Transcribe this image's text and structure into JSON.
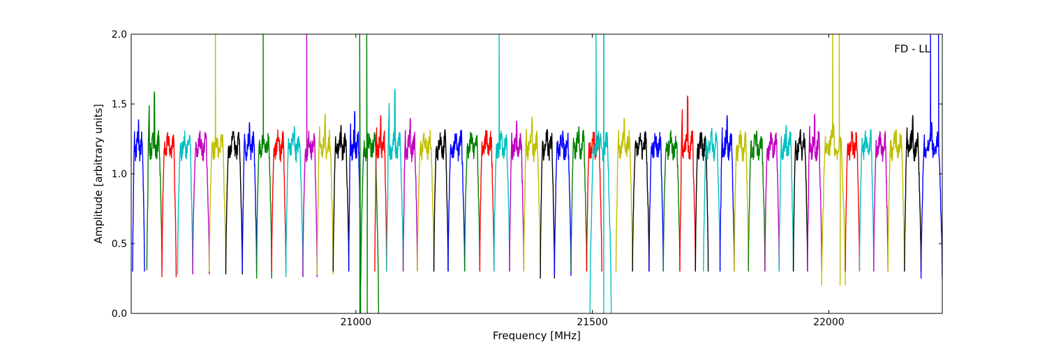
{
  "chart_data": {
    "type": "line",
    "title": "",
    "annotation": "FD - LL",
    "xlabel": "Frequency [MHz]",
    "ylabel": "Amplitude [arbitrary units]",
    "xlim": [
      20525,
      22240
    ],
    "ylim": [
      0.0,
      2.0
    ],
    "xticks": [
      21000,
      21500,
      22000
    ],
    "yticks": [
      0.0,
      0.5,
      1.0,
      1.5,
      2.0
    ],
    "xtick_labels": [
      "21000",
      "21500",
      "22000"
    ],
    "ytick_labels": [
      "0.0",
      "0.5",
      "1.0",
      "1.5",
      "2.0"
    ],
    "grid": false,
    "legend": "none",
    "band_shape": "each spectral window rises from ~0.3 at its edges to ~1.2-1.4 across a rippled passband",
    "colors": [
      "#0000ff",
      "#008000",
      "#ff0000",
      "#00bfbf",
      "#bf00bf",
      "#bfbf00",
      "#000000"
    ],
    "series": [
      {
        "color": "#0000ff",
        "band": [
          20528,
          20553
        ],
        "peak": 1.39,
        "floor": 0.3
      },
      {
        "color": "#008000",
        "band": [
          20558,
          20590
        ],
        "peak": 1.59,
        "floor": 0.31
      },
      {
        "color": "#ff0000",
        "band": [
          20590,
          20620
        ],
        "peak": 1.26,
        "floor": 0.26
      },
      {
        "color": "#00bfbf",
        "band": [
          20623,
          20655
        ],
        "peak": 1.23,
        "floor": 0.28
      },
      {
        "color": "#bf00bf",
        "band": [
          20655,
          20690
        ],
        "peak": 1.23,
        "floor": 0.28
      },
      {
        "color": "#bfbf00",
        "band": [
          20690,
          20725
        ],
        "peak": 1.26,
        "floor": 0.3,
        "spikes": [
          {
            "x": 20703,
            "y": 2.0
          }
        ]
      },
      {
        "color": "#000000",
        "band": [
          20725,
          20760
        ],
        "peak": 1.27,
        "floor": 0.28
      },
      {
        "color": "#0000ff",
        "band": [
          20760,
          20790
        ],
        "peak": 1.37,
        "floor": 0.3
      },
      {
        "color": "#008000",
        "band": [
          20790,
          20822
        ],
        "peak": 1.25,
        "floor": 0.25,
        "spikes": [
          {
            "x": 20804,
            "y": 2.0
          }
        ]
      },
      {
        "color": "#ff0000",
        "band": [
          20822,
          20852
        ],
        "peak": 1.26,
        "floor": 0.3
      },
      {
        "color": "#00bfbf",
        "band": [
          20852,
          20888
        ],
        "peak": 1.34,
        "floor": 0.26
      },
      {
        "color": "#bf00bf",
        "band": [
          20888,
          20918
        ],
        "peak": 1.21,
        "floor": 0.26,
        "spikes": [
          {
            "x": 20896,
            "y": 2.0
          }
        ]
      },
      {
        "color": "#bfbf00",
        "band": [
          20918,
          20952
        ],
        "peak": 1.43,
        "floor": 0.28
      },
      {
        "color": "#000000",
        "band": [
          20952,
          20985
        ],
        "peak": 1.35,
        "floor": 0.3
      },
      {
        "color": "#0000ff",
        "band": [
          20985,
          21010
        ],
        "peak": 1.45,
        "floor": 0.3
      },
      {
        "color": "#008000",
        "band": [
          21010,
          21048
        ],
        "peak": 1.23,
        "floor": 0.0,
        "spikes": [
          {
            "x": 21008,
            "y": 2.0
          },
          {
            "x": 21023,
            "y": 2.0
          },
          {
            "x": 21024,
            "y": 0.0
          }
        ]
      },
      {
        "color": "#ff0000",
        "band": [
          21040,
          21065
        ],
        "peak": 1.42,
        "floor": 0.3
      },
      {
        "color": "#00bfbf",
        "band": [
          21065,
          21100
        ],
        "peak": 1.61,
        "floor": 0.3
      },
      {
        "color": "#bf00bf",
        "band": [
          21100,
          21130
        ],
        "peak": 1.4,
        "floor": 0.3
      },
      {
        "color": "#bfbf00",
        "band": [
          21130,
          21165
        ],
        "peak": 1.22,
        "floor": 0.3
      },
      {
        "color": "#000000",
        "band": [
          21165,
          21195
        ],
        "peak": 1.26,
        "floor": 0.3
      },
      {
        "color": "#0000ff",
        "band": [
          21195,
          21230
        ],
        "peak": 1.29,
        "floor": 0.3
      },
      {
        "color": "#008000",
        "band": [
          21230,
          21262
        ],
        "peak": 1.23,
        "floor": 0.3
      },
      {
        "color": "#ff0000",
        "band": [
          21262,
          21292
        ],
        "peak": 1.31,
        "floor": 0.3
      },
      {
        "color": "#00bfbf",
        "band": [
          21292,
          21325
        ],
        "peak": 1.29,
        "floor": 0.3,
        "spikes": [
          {
            "x": 21303,
            "y": 2.0
          }
        ]
      },
      {
        "color": "#bf00bf",
        "band": [
          21325,
          21355
        ],
        "peak": 1.38,
        "floor": 0.3
      },
      {
        "color": "#bfbf00",
        "band": [
          21355,
          21390
        ],
        "peak": 1.41,
        "floor": 0.3
      },
      {
        "color": "#000000",
        "band": [
          21390,
          21420
        ],
        "peak": 1.32,
        "floor": 0.25
      },
      {
        "color": "#0000ff",
        "band": [
          21420,
          21455
        ],
        "peak": 1.31,
        "floor": 0.27
      },
      {
        "color": "#008000",
        "band": [
          21455,
          21488
        ],
        "peak": 1.34,
        "floor": 0.3
      },
      {
        "color": "#ff0000",
        "band": [
          21488,
          21520
        ],
        "peak": 1.3,
        "floor": 0.3
      },
      {
        "color": "#00bfbf",
        "band": [
          21495,
          21540
        ],
        "peak": 1.29,
        "floor": 0.0,
        "spikes": [
          {
            "x": 21508,
            "y": 2.0
          },
          {
            "x": 21524,
            "y": 2.0
          },
          {
            "x": 21524,
            "y": 0.0
          }
        ]
      },
      {
        "color": "#bfbf00",
        "band": [
          21550,
          21585
        ],
        "peak": 1.4,
        "floor": 0.3
      },
      {
        "color": "#000000",
        "band": [
          21585,
          21620
        ],
        "peak": 1.24,
        "floor": 0.3
      },
      {
        "color": "#0000ff",
        "band": [
          21620,
          21650
        ],
        "peak": 1.27,
        "floor": 0.3
      },
      {
        "color": "#008000",
        "band": [
          21650,
          21685
        ],
        "peak": 1.26,
        "floor": 0.3
      },
      {
        "color": "#ff0000",
        "band": [
          21685,
          21718
        ],
        "peak": 1.56,
        "floor": 0.3
      },
      {
        "color": "#000000",
        "band": [
          21718,
          21745
        ],
        "peak": 1.26,
        "floor": 0.3
      },
      {
        "color": "#00bfbf",
        "band": [
          21735,
          21770
        ],
        "peak": 1.33,
        "floor": 0.3
      },
      {
        "color": "#0000ff",
        "band": [
          21770,
          21800
        ],
        "peak": 1.42,
        "floor": 0.3
      },
      {
        "color": "#bfbf00",
        "band": [
          21800,
          21830
        ],
        "peak": 1.27,
        "floor": 0.3
      },
      {
        "color": "#008000",
        "band": [
          21830,
          21865
        ],
        "peak": 1.31,
        "floor": 0.3
      },
      {
        "color": "#bf00bf",
        "band": [
          21865,
          21895
        ],
        "peak": 1.26,
        "floor": 0.3
      },
      {
        "color": "#00bfbf",
        "band": [
          21895,
          21925
        ],
        "peak": 1.35,
        "floor": 0.3
      },
      {
        "color": "#000000",
        "band": [
          21925,
          21955
        ],
        "peak": 1.32,
        "floor": 0.3
      },
      {
        "color": "#bf00bf",
        "band": [
          21955,
          21985
        ],
        "peak": 1.43,
        "floor": 0.3
      },
      {
        "color": "#bfbf00",
        "band": [
          21985,
          22035
        ],
        "peak": 1.36,
        "floor": 0.2,
        "spikes": [
          {
            "x": 22008,
            "y": 2.0
          },
          {
            "x": 22022,
            "y": 2.0
          },
          {
            "x": 22024,
            "y": 0.2
          }
        ]
      },
      {
        "color": "#ff0000",
        "band": [
          22035,
          22065
        ],
        "peak": 1.29,
        "floor": 0.3
      },
      {
        "color": "#00bfbf",
        "band": [
          22065,
          22095
        ],
        "peak": 1.26,
        "floor": 0.3
      },
      {
        "color": "#bf00bf",
        "band": [
          22095,
          22125
        ],
        "peak": 1.26,
        "floor": 0.3
      },
      {
        "color": "#bfbf00",
        "band": [
          22125,
          22160
        ],
        "peak": 1.32,
        "floor": 0.3
      },
      {
        "color": "#000000",
        "band": [
          22160,
          22195
        ],
        "peak": 1.42,
        "floor": 0.3
      },
      {
        "color": "#0000ff",
        "band": [
          22195,
          22240
        ],
        "peak": 1.37,
        "floor": 0.25,
        "spikes": [
          {
            "x": 22215,
            "y": 2.0
          },
          {
            "x": 22232,
            "y": 2.0
          }
        ]
      }
    ]
  }
}
